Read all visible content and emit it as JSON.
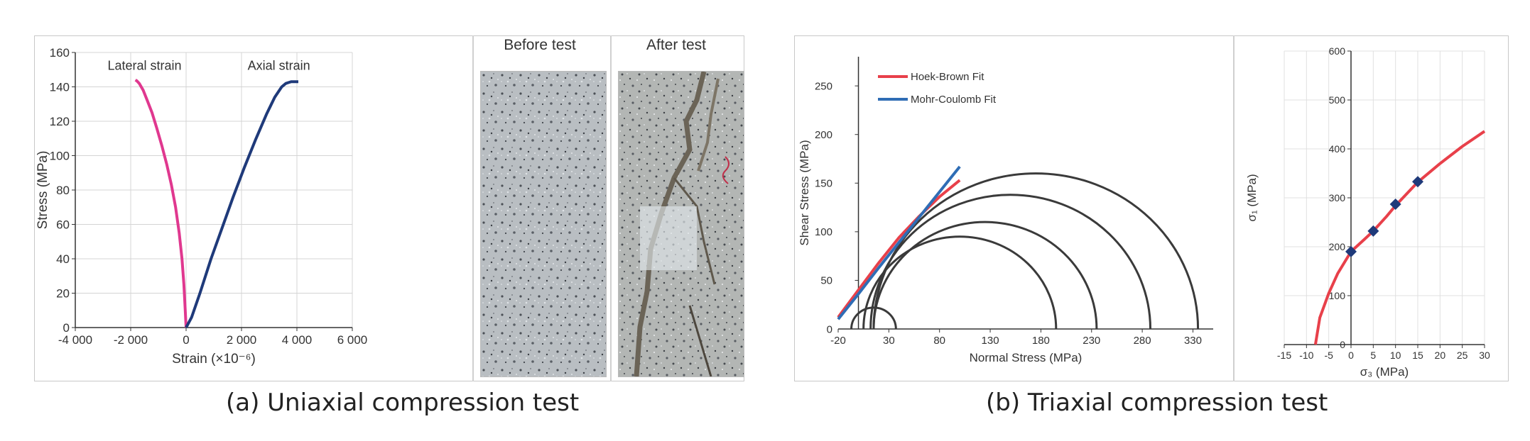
{
  "panel_a": {
    "caption": "(a) Uniaxial compression test",
    "photos": {
      "before_label": "Before test",
      "after_label": "After test"
    }
  },
  "panel_b": {
    "caption": "(b) Triaxial compression test"
  },
  "chart_data": [
    {
      "id": "uniaxial",
      "type": "line",
      "title": "",
      "xlabel": "Strain (×10⁻⁶)",
      "ylabel": "Stress (MPa)",
      "xlim": [
        -4000,
        6000
      ],
      "ylim": [
        0,
        160
      ],
      "xticks": [
        -4000,
        -2000,
        0,
        2000,
        4000,
        6000
      ],
      "xtick_labels": [
        "-4 000",
        "-2 000",
        "0",
        "2 000",
        "4 000",
        "6 000"
      ],
      "yticks": [
        0,
        20,
        40,
        60,
        80,
        100,
        120,
        140,
        160
      ],
      "grid": true,
      "annotations": [
        {
          "text": "Lateral strain",
          "x": -1500,
          "y": 150
        },
        {
          "text": "Axial strain",
          "x": 3350,
          "y": 150
        }
      ],
      "series": [
        {
          "name": "Lateral strain",
          "color": "#e0388f",
          "x": [
            0,
            -30,
            -80,
            -150,
            -250,
            -380,
            -530,
            -700,
            -880,
            -1060,
            -1230,
            -1400,
            -1550,
            -1690,
            -1780,
            -1830
          ],
          "y": [
            0,
            10,
            25,
            40,
            55,
            70,
            83,
            95,
            106,
            116,
            125,
            132,
            138,
            142,
            143.5,
            144
          ]
        },
        {
          "name": "Axial strain",
          "color": "#1f3a7a",
          "x": [
            0,
            200,
            500,
            900,
            1300,
            1700,
            2100,
            2500,
            2900,
            3200,
            3450,
            3600,
            3700,
            3800,
            3900,
            4000,
            4050
          ],
          "y": [
            0,
            6,
            20,
            40,
            58,
            76,
            93,
            109,
            124,
            134,
            140,
            142,
            142.5,
            143,
            143,
            143,
            143
          ]
        }
      ]
    },
    {
      "id": "mohr",
      "type": "line",
      "title": "",
      "xlabel": "Normal Stress (MPa)",
      "ylabel": "Shear Stress (MPa)",
      "xlim": [
        -20,
        350
      ],
      "ylim": [
        0,
        280
      ],
      "xticks": [
        -20,
        30,
        80,
        130,
        180,
        230,
        280,
        330
      ],
      "yticks": [
        0,
        50,
        100,
        150,
        200,
        250
      ],
      "grid": false,
      "legend": "top-left",
      "series": [
        {
          "name": "Hoek-Brown Fit",
          "color": "#e8404a",
          "x": [
            -20,
            0,
            20,
            40,
            60,
            80,
            100
          ],
          "y": [
            12,
            40,
            68,
            94,
            116,
            136,
            153
          ]
        },
        {
          "name": "Mohr-Coulomb Fit",
          "color": "#2f6db5",
          "x": [
            -20,
            0,
            20,
            40,
            60,
            80,
            100
          ],
          "y": [
            10,
            36,
            63,
            89,
            115,
            141,
            167
          ]
        }
      ],
      "circles": [
        {
          "center": 15,
          "radius": 22
        },
        {
          "center": 100,
          "radius": 95
        },
        {
          "center": 125,
          "radius": 110
        },
        {
          "center": 150,
          "radius": 138
        },
        {
          "center": 175,
          "radius": 160
        }
      ]
    },
    {
      "id": "hoek_brown",
      "type": "line",
      "title": "",
      "xlabel": "σ₃ (MPa)",
      "ylabel": "σ₁ (MPa)",
      "xlim": [
        -15,
        30
      ],
      "ylim": [
        0,
        600
      ],
      "xticks": [
        -15,
        -10,
        -5,
        0,
        5,
        10,
        15,
        20,
        25,
        30
      ],
      "yticks": [
        0,
        100,
        200,
        300,
        400,
        500,
        600
      ],
      "grid": true,
      "series": [
        {
          "name": "",
          "color": "#e8404a",
          "x": [
            -8,
            -7,
            -5,
            -3,
            0,
            3,
            5,
            8,
            10,
            15,
            20,
            25,
            30
          ],
          "y": [
            0,
            55,
            105,
            145,
            190,
            215,
            232,
            262,
            284,
            332,
            370,
            405,
            436
          ]
        },
        {
          "name": "",
          "color": "#1f3a7a",
          "marker": "diamond",
          "x": [
            0,
            5,
            10,
            15
          ],
          "y": [
            190,
            232,
            287,
            333
          ]
        }
      ]
    }
  ]
}
